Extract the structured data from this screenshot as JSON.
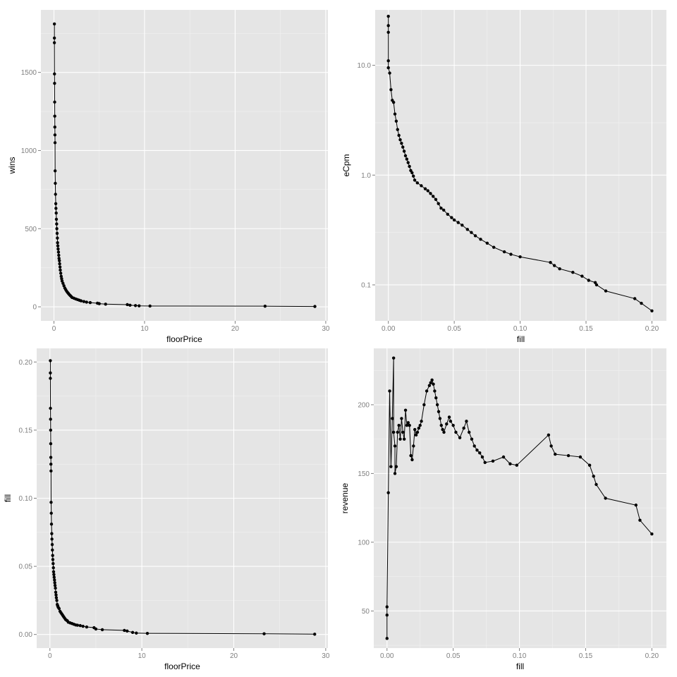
{
  "chart_data": [
    {
      "id": "wins-vs-floorPrice",
      "type": "line",
      "title": "",
      "xlabel": "floorPrice",
      "ylabel": "wins",
      "xlim": [
        -1.44,
        30.24
      ],
      "ylim": [
        -90,
        1900
      ],
      "x_scale": "linear",
      "y_scale": "linear",
      "x_ticks": [
        0,
        10,
        20,
        30
      ],
      "x_tick_labels": [
        "0",
        "10",
        "20",
        "30"
      ],
      "y_ticks": [
        0,
        500,
        1000,
        1500
      ],
      "y_tick_labels": [
        "0",
        "500",
        "1000",
        "1500"
      ],
      "grid": true,
      "legend": "none",
      "markers": true,
      "series": [
        {
          "x": [
            0.05,
            0.05,
            0.05,
            0.06,
            0.07,
            0.08,
            0.09,
            0.1,
            0.11,
            0.12,
            0.13,
            0.15,
            0.17,
            0.2,
            0.22,
            0.25,
            0.27,
            0.3,
            0.32,
            0.35,
            0.38,
            0.4,
            0.43,
            0.46,
            0.5,
            0.53,
            0.56,
            0.6,
            0.63,
            0.67,
            0.7,
            0.75,
            0.8,
            0.85,
            0.9,
            1.0,
            1.1,
            1.2,
            1.3,
            1.4,
            1.5,
            1.6,
            1.7,
            1.8,
            1.9,
            2.0,
            2.2,
            2.4,
            2.6,
            2.8,
            3.0,
            3.3,
            3.6,
            4.0,
            4.8,
            5.0,
            5.7,
            8.1,
            8.4,
            9.0,
            9.4,
            10.6,
            23.3,
            28.8
          ],
          "y": [
            1810,
            1720,
            1690,
            1490,
            1430,
            1310,
            1220,
            1150,
            1100,
            1050,
            870,
            790,
            720,
            660,
            630,
            600,
            560,
            530,
            500,
            470,
            440,
            410,
            390,
            370,
            350,
            330,
            310,
            295,
            275,
            255,
            235,
            215,
            195,
            180,
            165,
            150,
            135,
            120,
            110,
            100,
            92,
            85,
            78,
            72,
            66,
            60,
            55,
            50,
            46,
            42,
            38,
            34,
            30,
            27,
            23,
            20,
            17,
            14,
            10,
            8,
            6,
            5,
            4,
            2
          ]
        }
      ]
    },
    {
      "id": "eCpm-vs-fill",
      "type": "line",
      "title": "",
      "xlabel": "fill",
      "ylabel": "eCpm",
      "xlim": [
        -0.01,
        0.211
      ],
      "ylim": [
        0.047,
        32
      ],
      "x_scale": "linear",
      "y_scale": "log10",
      "x_ticks": [
        0,
        0.05,
        0.1,
        0.15,
        0.2
      ],
      "x_tick_labels": [
        "0.00",
        "0.05",
        "0.10",
        "0.15",
        "0.20"
      ],
      "y_ticks": [
        0.1,
        1,
        10
      ],
      "y_tick_labels": [
        "0.1",
        "1.0",
        "10.0"
      ],
      "grid": true,
      "legend": "none",
      "markers": true,
      "series": [
        {
          "x": [
            0.0,
            0.0,
            0.0,
            0.0,
            0.0,
            0.001,
            0.002,
            0.003,
            0.004,
            0.005,
            0.006,
            0.007,
            0.008,
            0.009,
            0.01,
            0.011,
            0.012,
            0.013,
            0.014,
            0.015,
            0.016,
            0.017,
            0.018,
            0.019,
            0.02,
            0.022,
            0.025,
            0.028,
            0.03,
            0.032,
            0.034,
            0.036,
            0.038,
            0.04,
            0.042,
            0.045,
            0.048,
            0.05,
            0.053,
            0.056,
            0.06,
            0.063,
            0.066,
            0.07,
            0.075,
            0.08,
            0.088,
            0.093,
            0.1,
            0.123,
            0.126,
            0.13,
            0.14,
            0.147,
            0.152,
            0.157,
            0.158,
            0.165,
            0.187,
            0.192,
            0.2
          ],
          "y": [
            28,
            23,
            20,
            11,
            9.5,
            8.5,
            6.0,
            4.8,
            4.6,
            3.6,
            3.1,
            2.6,
            2.3,
            2.1,
            1.95,
            1.8,
            1.65,
            1.5,
            1.4,
            1.3,
            1.2,
            1.1,
            1.05,
            0.98,
            0.9,
            0.85,
            0.8,
            0.75,
            0.72,
            0.68,
            0.64,
            0.6,
            0.55,
            0.5,
            0.48,
            0.44,
            0.41,
            0.39,
            0.37,
            0.35,
            0.32,
            0.3,
            0.28,
            0.26,
            0.24,
            0.22,
            0.2,
            0.19,
            0.18,
            0.16,
            0.15,
            0.14,
            0.13,
            0.12,
            0.11,
            0.105,
            0.1,
            0.088,
            0.075,
            0.068,
            0.058
          ]
        }
      ]
    },
    {
      "id": "fill-vs-floorPrice",
      "type": "line",
      "title": "",
      "xlabel": "floorPrice",
      "ylabel": "fill",
      "xlim": [
        -1.44,
        30.24
      ],
      "ylim": [
        -0.01,
        0.21
      ],
      "x_scale": "linear",
      "y_scale": "linear",
      "x_ticks": [
        0,
        10,
        20,
        30
      ],
      "x_tick_labels": [
        "0",
        "10",
        "20",
        "30"
      ],
      "y_ticks": [
        0,
        0.05,
        0.1,
        0.15,
        0.2
      ],
      "y_tick_labels": [
        "0.00",
        "0.05",
        "0.10",
        "0.15",
        "0.20"
      ],
      "grid": true,
      "legend": "none",
      "markers": true,
      "series": [
        {
          "x": [
            0.05,
            0.05,
            0.05,
            0.06,
            0.07,
            0.08,
            0.09,
            0.1,
            0.11,
            0.12,
            0.13,
            0.15,
            0.17,
            0.2,
            0.22,
            0.25,
            0.27,
            0.3,
            0.32,
            0.35,
            0.38,
            0.4,
            0.43,
            0.46,
            0.5,
            0.53,
            0.56,
            0.6,
            0.63,
            0.67,
            0.7,
            0.75,
            0.8,
            0.85,
            0.9,
            1.0,
            1.1,
            1.2,
            1.3,
            1.4,
            1.5,
            1.6,
            1.7,
            1.8,
            1.9,
            2.0,
            2.2,
            2.4,
            2.6,
            2.8,
            3.0,
            3.3,
            3.6,
            4.0,
            4.8,
            5.0,
            5.7,
            8.1,
            8.4,
            9.0,
            9.4,
            10.6,
            23.3,
            28.8
          ],
          "y": [
            0.201,
            0.192,
            0.188,
            0.166,
            0.158,
            0.15,
            0.14,
            0.13,
            0.125,
            0.12,
            0.097,
            0.089,
            0.081,
            0.074,
            0.07,
            0.066,
            0.062,
            0.058,
            0.055,
            0.052,
            0.049,
            0.046,
            0.044,
            0.042,
            0.04,
            0.038,
            0.036,
            0.034,
            0.031,
            0.029,
            0.027,
            0.025,
            0.022,
            0.021,
            0.02,
            0.019,
            0.017,
            0.016,
            0.015,
            0.014,
            0.013,
            0.012,
            0.011,
            0.0105,
            0.01,
            0.009,
            0.0085,
            0.008,
            0.0075,
            0.007,
            0.0068,
            0.0065,
            0.006,
            0.0055,
            0.005,
            0.004,
            0.0035,
            0.003,
            0.0025,
            0.0015,
            0.001,
            0.0008,
            0.0005,
            0.0002
          ]
        }
      ]
    },
    {
      "id": "revenue-vs-fill",
      "type": "line",
      "title": "",
      "xlabel": "fill",
      "ylabel": "revenue",
      "xlim": [
        -0.01,
        0.211
      ],
      "ylim": [
        23,
        241
      ],
      "x_scale": "linear",
      "y_scale": "linear",
      "x_ticks": [
        0,
        0.05,
        0.1,
        0.15,
        0.2
      ],
      "x_tick_labels": [
        "0.00",
        "0.05",
        "0.10",
        "0.15",
        "0.20"
      ],
      "y_ticks": [
        50,
        100,
        150,
        200
      ],
      "y_tick_labels": [
        "50",
        "100",
        "150",
        "200"
      ],
      "grid": true,
      "legend": "none",
      "markers": true,
      "series": [
        {
          "x": [
            0.0,
            0.0,
            0.0,
            0.001,
            0.002,
            0.003,
            0.004,
            0.005,
            0.005,
            0.006,
            0.006,
            0.007,
            0.008,
            0.009,
            0.01,
            0.011,
            0.012,
            0.013,
            0.014,
            0.015,
            0.016,
            0.017,
            0.018,
            0.019,
            0.02,
            0.021,
            0.022,
            0.023,
            0.024,
            0.025,
            0.026,
            0.028,
            0.03,
            0.032,
            0.033,
            0.034,
            0.035,
            0.036,
            0.037,
            0.038,
            0.039,
            0.04,
            0.041,
            0.042,
            0.043,
            0.045,
            0.047,
            0.048,
            0.05,
            0.052,
            0.055,
            0.058,
            0.06,
            0.062,
            0.064,
            0.066,
            0.068,
            0.07,
            0.072,
            0.074,
            0.08,
            0.088,
            0.093,
            0.098,
            0.122,
            0.124,
            0.127,
            0.137,
            0.146,
            0.153,
            0.156,
            0.158,
            0.165,
            0.188,
            0.191,
            0.2
          ],
          "y": [
            30,
            47,
            53,
            136,
            210,
            155,
            190,
            234,
            180,
            170,
            150,
            155,
            180,
            185,
            175,
            190,
            180,
            175,
            196,
            185,
            187,
            185,
            163,
            160,
            170,
            182,
            178,
            180,
            183,
            185,
            188,
            200,
            210,
            214,
            216,
            218,
            215,
            210,
            205,
            200,
            195,
            190,
            185,
            182,
            180,
            186,
            191,
            188,
            185,
            180,
            176,
            183,
            188,
            180,
            175,
            170,
            167,
            165,
            162,
            158,
            159,
            162,
            157,
            156,
            178,
            170,
            164,
            163,
            162,
            156,
            148,
            142,
            132,
            127,
            116,
            106
          ]
        }
      ]
    }
  ]
}
